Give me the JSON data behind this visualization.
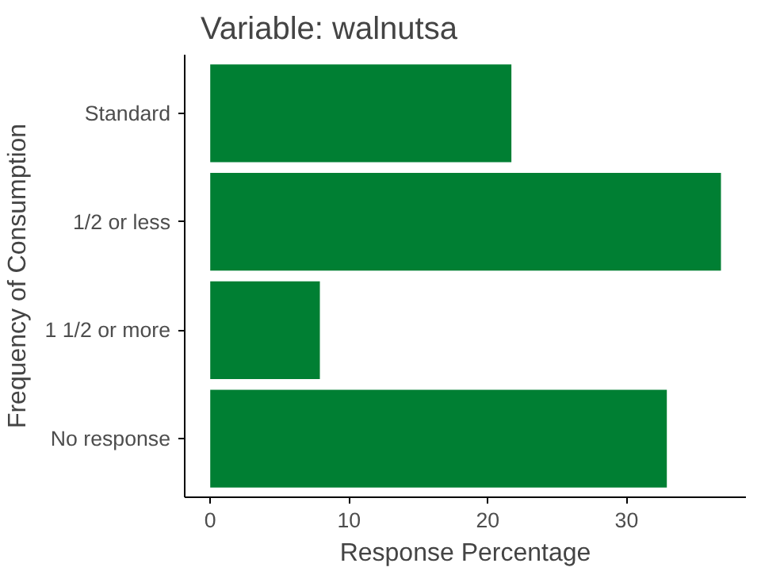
{
  "chart_data": {
    "type": "bar",
    "orientation": "horizontal",
    "title": "Variable: walnutsa",
    "xlabel": "Response Percentage",
    "ylabel": "Frequency of Consumption",
    "categories": [
      "Standard",
      "1/2 or less",
      "1 1/2 or more",
      "No response"
    ],
    "values": [
      21.7,
      36.8,
      7.9,
      32.9
    ],
    "color": "#007f33",
    "xlim": [
      -1.84,
      38.6
    ],
    "xticks": [
      0,
      10,
      20,
      30
    ],
    "grid": false
  }
}
